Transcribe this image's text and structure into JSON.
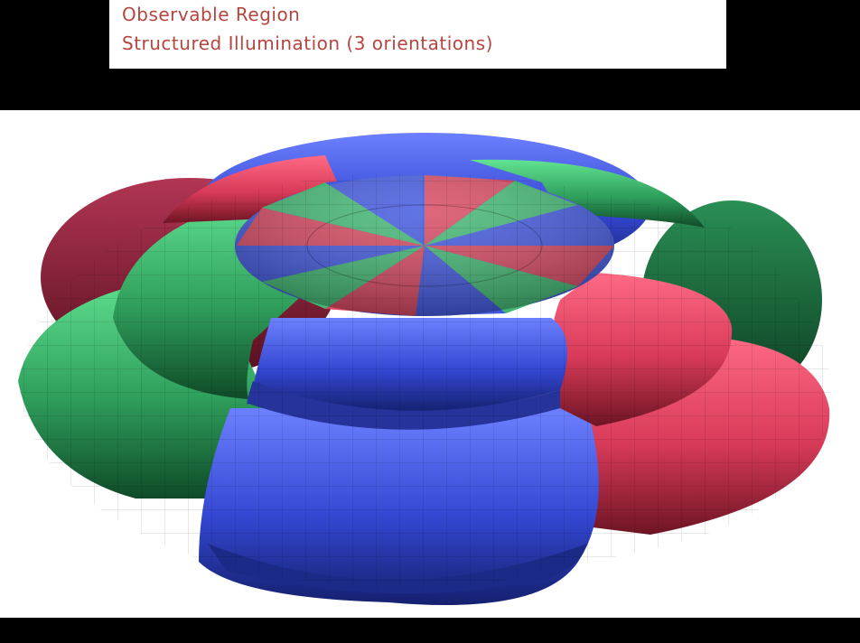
{
  "legend": {
    "lines": [
      "Observable Region",
      "Structured Illumination (3 orientations)"
    ],
    "text_color": "#b5453f"
  },
  "figure": {
    "colors": {
      "red": "#d84560",
      "green": "#3fb872",
      "blue": "#3f56e0"
    }
  }
}
